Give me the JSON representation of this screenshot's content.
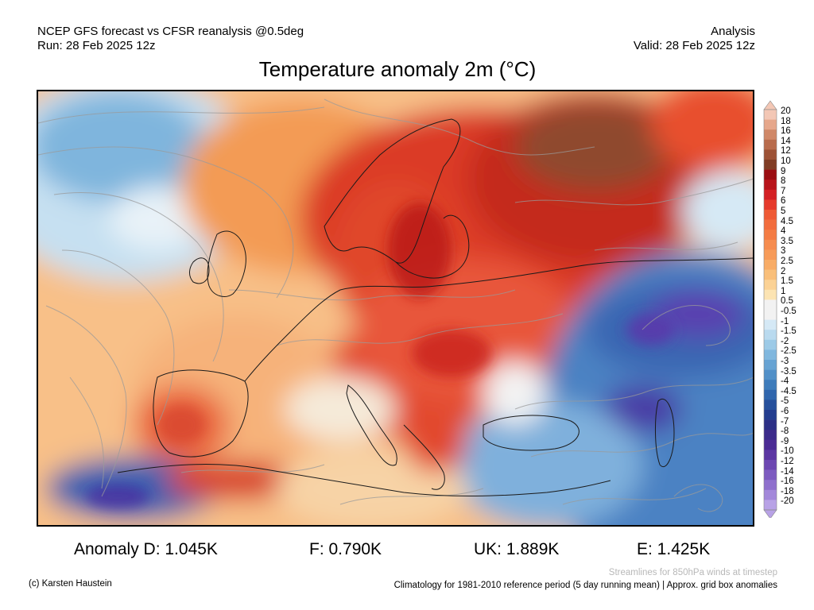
{
  "header": {
    "left_line1": "NCEP GFS forecast vs CFSR reanalysis @0.5deg",
    "left_line2": "Run: 28 Feb 2025 12z",
    "right_line1": "Analysis",
    "right_line2": "Valid: 28 Feb 2025 12z"
  },
  "title": "Temperature anomaly 2m (°C)",
  "colors": {
    "very_warm": "#7a3b22",
    "warm_dark": "#b81717",
    "warm": "#e8452a",
    "mild": "#f59a56",
    "light_warm": "#fcd9a4",
    "neutral": "#f3f3f3",
    "light_cold": "#a9d2ec",
    "cold": "#4b82c3",
    "very_cold": "#253c9a",
    "extreme_cold": "#6a3fb5",
    "stream": "#9a9a9a",
    "border": "#1a1a1a"
  },
  "colorbar": {
    "labels": [
      "20",
      "18",
      "16",
      "14",
      "12",
      "10",
      "9",
      "8",
      "7",
      "6",
      "5",
      "4.5",
      "4",
      "3.5",
      "3",
      "2.5",
      "2",
      "1.5",
      "1",
      "0.5",
      "-0.5",
      "-1",
      "-1.5",
      "-2",
      "-2.5",
      "-3",
      "-3.5",
      "-4",
      "-4.5",
      "-5",
      "-6",
      "-7",
      "-8",
      "-9",
      "-10",
      "-12",
      "-14",
      "-16",
      "-18",
      "-20"
    ],
    "colors": [
      "#f3c7b5",
      "#e6a78b",
      "#d08868",
      "#b86b4c",
      "#9d5236",
      "#803c24",
      "#9b0d12",
      "#b8141a",
      "#d42024",
      "#e63a2c",
      "#ef5a35",
      "#f26d3d",
      "#f47c44",
      "#f68c4f",
      "#f79b59",
      "#f8ac66",
      "#f9bf7a",
      "#fbd295",
      "#fce4b3",
      "#f2f2f2",
      "#f2f2f2",
      "#d5e9f6",
      "#b9daef",
      "#9ccae7",
      "#80b7de",
      "#67a3d3",
      "#5190c8",
      "#3e7cbb",
      "#3066ad",
      "#26509c",
      "#233d8f",
      "#2c2f85",
      "#3b2a8a",
      "#4b2b95",
      "#5c36a3",
      "#6d47b2",
      "#7d5bc0",
      "#8f70cd",
      "#a388da",
      "#b8a2e6"
    ]
  },
  "stats": {
    "d": "Anomaly D: 1.045K",
    "f": "F: 0.790K",
    "uk": "UK: 1.889K",
    "e": "E: 1.425K"
  },
  "footer": {
    "credit": "(c) Karsten Haustein",
    "streamlines": "Streamlines for 850hPa winds at timestep",
    "climatology": "Climatology for 1981-2010 reference period (5 day running mean) | Approx. grid box anomalies"
  }
}
